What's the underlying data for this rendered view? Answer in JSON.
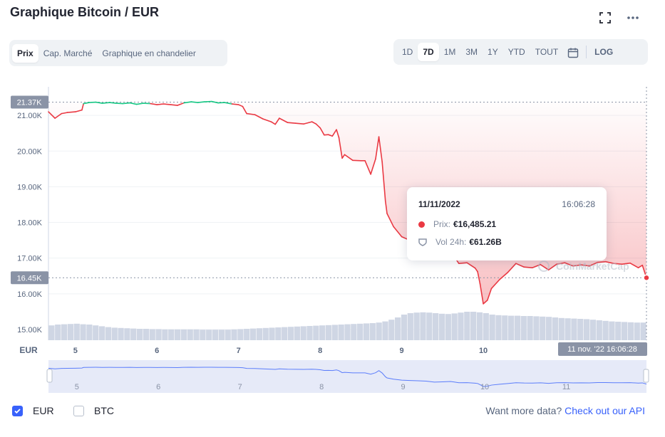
{
  "header": {
    "title": "Graphique Bitcoin / EUR"
  },
  "view_tabs": [
    {
      "label": "Prix",
      "active": true
    },
    {
      "label": "Cap. Marché",
      "active": false
    },
    {
      "label": "Graphique en chandelier",
      "active": false
    }
  ],
  "range_tabs": [
    {
      "label": "1D",
      "active": false
    },
    {
      "label": "7D",
      "active": true
    },
    {
      "label": "1M",
      "active": false
    },
    {
      "label": "3M",
      "active": false
    },
    {
      "label": "1Y",
      "active": false
    },
    {
      "label": "YTD",
      "active": false
    },
    {
      "label": "TOUT",
      "active": false
    }
  ],
  "log_label": "LOG",
  "tooltip": {
    "date": "11/11/2022",
    "time": "16:06:28",
    "price_label": "Prix:",
    "price_value": "€16,485.21",
    "vol_label": "Vol 24h:",
    "vol_value": "€61.26B"
  },
  "watermark": "CoinMarketCap",
  "footer": {
    "currencies": [
      {
        "label": "EUR",
        "checked": true
      },
      {
        "label": "BTC",
        "checked": false
      }
    ],
    "api_text": "Want more data?",
    "api_link": "Check out our API"
  },
  "colors": {
    "up": "#16c784",
    "down": "#ea3943",
    "accent": "#3861fb",
    "volume": "#cfd6e4",
    "navigator": "#e6eaf8"
  },
  "chart_data": {
    "type": "line",
    "y_unit_label": "EUR",
    "y_ticks": [
      "21.00K",
      "20.00K",
      "19.00K",
      "18.00K",
      "17.00K",
      "16.00K",
      "15.00K"
    ],
    "y_tick_values": [
      21000,
      20000,
      19000,
      18000,
      17000,
      16000,
      15000
    ],
    "ylim": [
      14700,
      21800
    ],
    "x_ticks": [
      "5",
      "6",
      "7",
      "8",
      "9",
      "10",
      "11"
    ],
    "x_tick_values": [
      5,
      6,
      7,
      8,
      9,
      10,
      11
    ],
    "xlim": [
      4.67,
      12.0
    ],
    "high_label": "21.37K",
    "high_value": 21370,
    "current_label": "16.45K",
    "current_value": 16450,
    "crosshair_label": "11 nov. '22  16:06:28",
    "crosshair_x": 12.0,
    "series": [
      {
        "x": [
          4.67,
          4.75,
          4.83,
          4.9,
          5.0,
          5.08,
          5.1,
          5.17,
          5.25,
          5.33,
          5.42,
          5.5,
          5.58,
          5.67,
          5.75,
          5.83,
          5.92,
          6.0,
          6.08,
          6.17,
          6.25,
          6.33,
          6.42,
          6.5,
          6.58,
          6.67,
          6.75,
          6.83,
          6.92,
          7.0,
          7.05,
          7.1,
          7.2,
          7.3,
          7.4,
          7.45,
          7.5,
          7.6,
          7.7,
          7.8,
          7.9,
          7.95,
          8.0,
          8.05,
          8.1,
          8.15,
          8.2,
          8.23,
          8.27,
          8.3,
          8.4,
          8.5,
          8.55,
          8.62,
          8.68,
          8.72,
          8.76,
          8.8,
          8.82,
          8.9,
          9.0,
          9.1,
          9.2,
          9.3,
          9.4,
          9.5,
          9.6,
          9.7,
          9.8,
          9.9,
          9.93,
          9.96,
          10.0,
          10.05,
          10.1,
          10.2,
          10.3,
          10.4,
          10.5,
          10.6,
          10.7,
          10.8,
          10.9,
          11.0,
          11.1,
          11.2,
          11.3,
          11.4,
          11.5,
          11.6,
          11.7,
          11.8,
          11.9,
          11.95,
          12.0
        ],
        "y": [
          21100,
          20920,
          21050,
          21080,
          21100,
          21150,
          21330,
          21360,
          21370,
          21340,
          21360,
          21340,
          21330,
          21350,
          21310,
          21340,
          21330,
          21300,
          21320,
          21300,
          21280,
          21350,
          21380,
          21360,
          21380,
          21390,
          21350,
          21360,
          21320,
          21300,
          21250,
          21050,
          21020,
          20900,
          20820,
          20750,
          20920,
          20800,
          20780,
          20760,
          20820,
          20760,
          20650,
          20450,
          20460,
          20420,
          20600,
          20380,
          19800,
          19900,
          19740,
          19730,
          19730,
          19350,
          19780,
          20400,
          19700,
          18600,
          18250,
          17880,
          17600,
          17500,
          17420,
          17300,
          17020,
          17100,
          17200,
          16850,
          16870,
          16720,
          16620,
          16280,
          15720,
          15820,
          16150,
          16400,
          16600,
          16850,
          16750,
          16730,
          16820,
          16670,
          16830,
          16870,
          16780,
          16810,
          16780,
          16880,
          16900,
          16850,
          16830,
          16860,
          16730,
          16800,
          16450
        ]
      }
    ],
    "volume": [
      0.52,
      0.55,
      0.56,
      0.57,
      0.58,
      0.56,
      0.55,
      0.52,
      0.49,
      0.46,
      0.44,
      0.43,
      0.42,
      0.41,
      0.4,
      0.4,
      0.39,
      0.39,
      0.38,
      0.38,
      0.38,
      0.38,
      0.38,
      0.38,
      0.37,
      0.37,
      0.37,
      0.37,
      0.37,
      0.38,
      0.39,
      0.4,
      0.41,
      0.42,
      0.43,
      0.44,
      0.45,
      0.46,
      0.47,
      0.48,
      0.49,
      0.5,
      0.51,
      0.52,
      0.53,
      0.54,
      0.55,
      0.56,
      0.57,
      0.58,
      0.59,
      0.6,
      0.62,
      0.66,
      0.72,
      0.8,
      0.9,
      0.95,
      0.97,
      0.98,
      0.97,
      0.95,
      0.93,
      0.92,
      0.94,
      0.97,
      1.0,
      1.0,
      0.98,
      0.95,
      0.9,
      0.88,
      0.87,
      0.86,
      0.86,
      0.85,
      0.85,
      0.84,
      0.83,
      0.82,
      0.8,
      0.78,
      0.77,
      0.76,
      0.75,
      0.74,
      0.72,
      0.7,
      0.68,
      0.66,
      0.65,
      0.64,
      0.63,
      0.62,
      0.62
    ]
  }
}
